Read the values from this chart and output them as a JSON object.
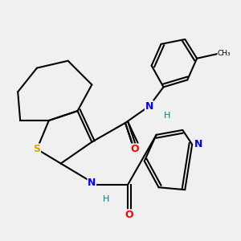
{
  "background_color": "#f0f0f0",
  "bond_color": "#000000",
  "atom_colors": {
    "N": "#0000ff",
    "O": "#ff0000",
    "S": "#ccaa00",
    "H": "#008080",
    "C": "#000000"
  },
  "figsize": [
    3.0,
    3.0
  ],
  "dpi": 100
}
